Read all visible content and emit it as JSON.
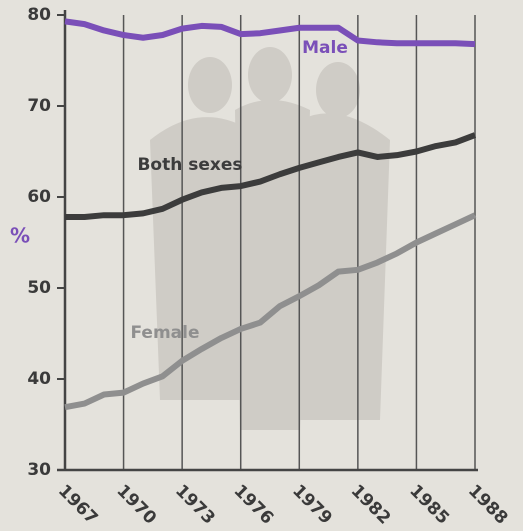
{
  "chart_data": {
    "type": "line",
    "y_label": "%",
    "x": [
      1967,
      1968,
      1969,
      1970,
      1971,
      1972,
      1973,
      1974,
      1975,
      1976,
      1977,
      1978,
      1979,
      1980,
      1981,
      1982,
      1983,
      1984,
      1985,
      1986,
      1987,
      1988
    ],
    "xlim": [
      1967,
      1988
    ],
    "xticks": [
      1967,
      1970,
      1973,
      1976,
      1979,
      1982,
      1985,
      1988
    ],
    "ylim": [
      30,
      80
    ],
    "yticks": [
      30,
      40,
      50,
      60,
      70,
      80
    ],
    "grid": true,
    "series": [
      {
        "name": "Male",
        "color": "#7a4fb8",
        "values": [
          79.3,
          79,
          78.3,
          77.8,
          77.5,
          77.8,
          78.5,
          78.8,
          78.7,
          77.9,
          78,
          78.3,
          78.6,
          78.6,
          78.6,
          77.2,
          77,
          76.9,
          76.9,
          76.9,
          76.9,
          76.8
        ]
      },
      {
        "name": "Both sexes",
        "color": "#3c3c3c",
        "values": [
          57.8,
          57.8,
          58,
          58,
          58.2,
          58.7,
          59.7,
          60.5,
          61,
          61.2,
          61.7,
          62.5,
          63.2,
          63.8,
          64.4,
          64.9,
          64.4,
          64.6,
          65,
          65.6,
          66,
          66.8
        ]
      },
      {
        "name": "Female",
        "color": "#8f8f8f",
        "values": [
          36.9,
          37.3,
          38.3,
          38.5,
          39.5,
          40.3,
          42,
          43.3,
          44.5,
          45.5,
          46.2,
          48,
          49.1,
          50.3,
          51.8,
          52,
          52.8,
          53.8,
          55,
          56,
          57,
          58
        ]
      }
    ]
  }
}
